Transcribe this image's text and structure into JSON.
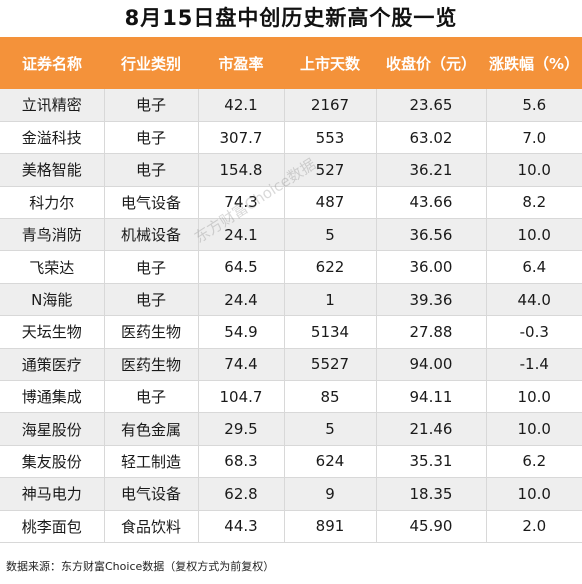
{
  "title": "8月15日盘中创历史新高个股一览",
  "columns": [
    "证券名称",
    "行业类别",
    "市盈率",
    "上市天数",
    "收盘价（元）",
    "涨跌幅（%）"
  ],
  "rows": [
    [
      "立讯精密",
      "电子",
      "42.1",
      "2167",
      "23.65",
      "5.6"
    ],
    [
      "金溢科技",
      "电子",
      "307.7",
      "553",
      "63.02",
      "7.0"
    ],
    [
      "美格智能",
      "电子",
      "154.8",
      "527",
      "36.21",
      "10.0"
    ],
    [
      "科力尔",
      "电气设备",
      "74.3",
      "487",
      "43.66",
      "8.2"
    ],
    [
      "青鸟消防",
      "机械设备",
      "24.1",
      "5",
      "36.56",
      "10.0"
    ],
    [
      "飞荣达",
      "电子",
      "64.5",
      "622",
      "36.00",
      "6.4"
    ],
    [
      "N海能",
      "电子",
      "24.4",
      "1",
      "39.36",
      "44.0"
    ],
    [
      "天坛生物",
      "医药生物",
      "54.9",
      "5134",
      "27.88",
      "-0.3"
    ],
    [
      "通策医疗",
      "医药生物",
      "74.4",
      "5527",
      "94.00",
      "-1.4"
    ],
    [
      "博通集成",
      "电子",
      "104.7",
      "85",
      "94.11",
      "10.0"
    ],
    [
      "海星股份",
      "有色金属",
      "29.5",
      "5",
      "21.46",
      "10.0"
    ],
    [
      "集友股份",
      "轻工制造",
      "68.3",
      "624",
      "35.31",
      "6.2"
    ],
    [
      "神马电力",
      "电气设备",
      "62.8",
      "9",
      "18.35",
      "10.0"
    ],
    [
      "桃李面包",
      "食品饮料",
      "44.3",
      "891",
      "45.90",
      "2.0"
    ]
  ],
  "watermark": "东方财富Choice数据",
  "footer": "数据来源：东方财富Choice数据（复权方式为前复权）",
  "colors": {
    "header_bg": "#f4923a",
    "header_text": "#ffffff",
    "row_alt_bg": "#eeeeee"
  }
}
